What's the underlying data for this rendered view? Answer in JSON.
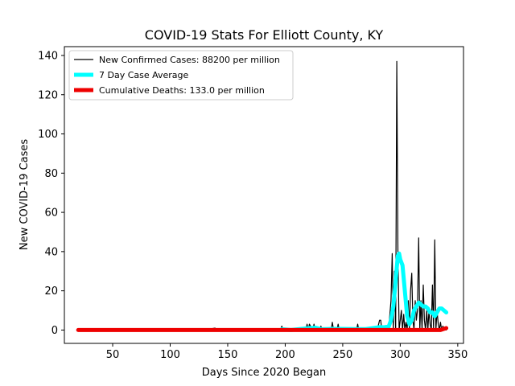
{
  "chart_data": {
    "type": "line",
    "title": "COVID-19 Stats For Elliott County, KY",
    "xlabel": "Days Since 2020 Began",
    "ylabel": "New COVID-19 Cases",
    "xlim": [
      8,
      355
    ],
    "ylim": [
      -6.8,
      144.5
    ],
    "xticks": [
      50,
      100,
      150,
      200,
      250,
      300,
      350
    ],
    "yticks": [
      0,
      20,
      40,
      60,
      80,
      100,
      120,
      140
    ],
    "grid": false,
    "legend_position": "top-left",
    "series": [
      {
        "name": "New Confirmed Cases: 88200 per million",
        "color": "#000000",
        "x": [
          20,
          130,
          139,
          140,
          141,
          150,
          196,
          197,
          198,
          200,
          210,
          218,
          219,
          220,
          221,
          224,
          225,
          226,
          230,
          231,
          232,
          240,
          241,
          242,
          245,
          246,
          247,
          250,
          260,
          262,
          263,
          264,
          270,
          275,
          280,
          282,
          283,
          284,
          286,
          288,
          290,
          292,
          293,
          294,
          295,
          296,
          297,
          298,
          299,
          300,
          301,
          302,
          303,
          304,
          305,
          306,
          307,
          308,
          309,
          310,
          311,
          312,
          313,
          314,
          315,
          316,
          317,
          318,
          319,
          320,
          321,
          322,
          323,
          324,
          325,
          326,
          327,
          328,
          329,
          330,
          331,
          332,
          333,
          334,
          335,
          336,
          337,
          338,
          339,
          340
        ],
        "y": [
          0,
          0,
          1,
          0,
          0,
          0,
          0,
          2,
          0,
          0,
          0,
          0,
          3,
          0,
          3,
          0,
          3,
          0,
          0,
          2,
          0,
          0,
          4,
          0,
          0,
          3,
          0,
          0,
          0,
          0,
          3,
          0,
          0,
          0,
          0,
          5,
          5,
          0,
          0,
          0,
          1,
          15,
          39,
          0,
          30,
          0,
          137,
          40,
          0,
          5,
          10,
          0,
          8,
          0,
          4,
          0,
          15,
          0,
          20,
          29,
          5,
          0,
          15,
          5,
          10,
          47,
          0,
          15,
          0,
          23,
          5,
          0,
          10,
          0,
          10,
          3,
          0,
          23,
          0,
          46,
          0,
          10,
          3,
          0,
          4,
          0,
          2,
          1,
          0,
          0
        ]
      },
      {
        "name": "7 Day Case Average",
        "color": "#00ffff",
        "x": [
          197,
          205,
          219,
          226,
          232,
          241,
          248,
          263,
          270,
          282,
          286,
          290,
          292,
          294,
          296,
          297,
          298,
          299,
          300,
          302,
          304,
          306,
          308,
          310,
          312,
          314,
          316,
          318,
          320,
          322,
          324,
          326,
          328,
          330,
          332,
          334,
          336,
          338,
          340
        ],
        "y": [
          0.4,
          0,
          0.9,
          1.2,
          0.4,
          0.6,
          0.6,
          0.5,
          0.5,
          1.5,
          1.4,
          1.8,
          5,
          12,
          25,
          32,
          38,
          39,
          36,
          33,
          20,
          7,
          3,
          5,
          10,
          12,
          14,
          13,
          12,
          12,
          11,
          9,
          9,
          7,
          9,
          11,
          11,
          10,
          9
        ]
      },
      {
        "name": "Cumulative Deaths: 133.0 per million",
        "color": "#ee0000",
        "x": [
          20,
          335,
          340
        ],
        "y": [
          0,
          0,
          1
        ]
      }
    ]
  }
}
